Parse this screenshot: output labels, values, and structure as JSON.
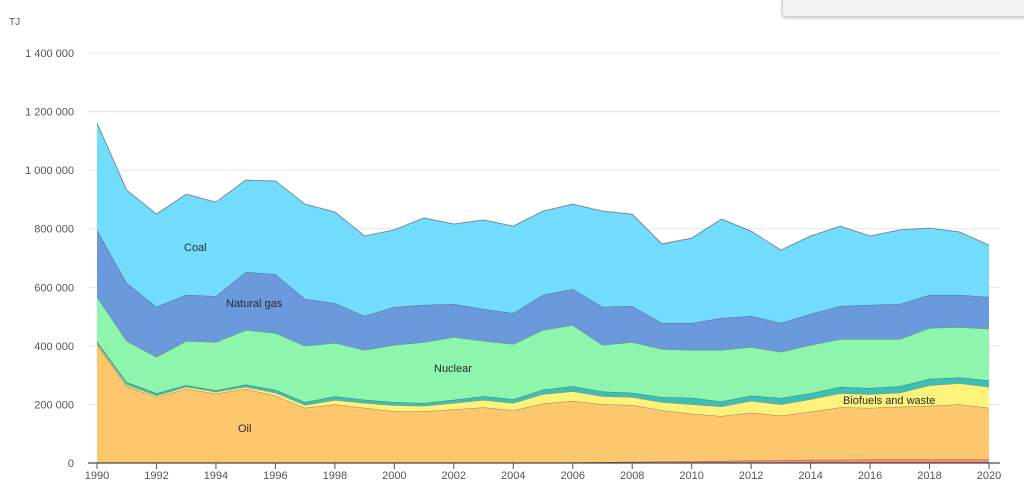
{
  "chart_data": {
    "type": "area",
    "stacked": true,
    "unit_label": "TJ",
    "title": "",
    "xlabel": "",
    "ylabel": "TJ",
    "ylim": [
      0,
      1400000
    ],
    "xlim": [
      1990,
      2020
    ],
    "grid": true,
    "y_ticks": [
      0,
      200000,
      400000,
      600000,
      800000,
      1000000,
      1200000,
      1400000
    ],
    "y_tick_labels": [
      "0",
      "200 000",
      "400 000",
      "600 000",
      "800 000",
      "1 000 000",
      "1 200 000",
      "1 400 000"
    ],
    "x_ticks": [
      1990,
      1992,
      1994,
      1996,
      1998,
      2000,
      2002,
      2004,
      2006,
      2008,
      2010,
      2012,
      2014,
      2016,
      2018,
      2020
    ],
    "x_tick_labels": [
      "1990",
      "1992",
      "1994",
      "1996",
      "1998",
      "2000",
      "2002",
      "2004",
      "2006",
      "2008",
      "2010",
      "2012",
      "2014",
      "2016",
      "2018",
      "2020"
    ],
    "x": [
      1990,
      1991,
      1992,
      1993,
      1994,
      1995,
      1996,
      1997,
      1998,
      1999,
      2000,
      2001,
      2002,
      2003,
      2004,
      2005,
      2006,
      2007,
      2008,
      2009,
      2010,
      2011,
      2012,
      2013,
      2014,
      2015,
      2016,
      2017,
      2018,
      2019,
      2020
    ],
    "series": [
      {
        "name": "",
        "color": "#f08a7a",
        "values": [
          0,
          0,
          0,
          0,
          0,
          0,
          0,
          0,
          0,
          0,
          0,
          0,
          0,
          0,
          0,
          1000,
          2000,
          3000,
          4000,
          5000,
          6000,
          7000,
          9000,
          10000,
          11000,
          11000,
          12000,
          12000,
          12000,
          12000,
          12000
        ]
      },
      {
        "name": "Oil",
        "color": "#fdc76e",
        "values": [
          405000,
          262000,
          225000,
          253000,
          237000,
          253000,
          230000,
          188000,
          200000,
          188000,
          177000,
          177000,
          183000,
          190000,
          180000,
          202000,
          210000,
          197000,
          194000,
          175000,
          162000,
          153000,
          163000,
          152000,
          164000,
          179000,
          176000,
          180000,
          183000,
          188000,
          176000
        ]
      },
      {
        "name": "Biofuels and waste",
        "color": "#fdf27a",
        "values": [
          5000,
          6000,
          5000,
          7000,
          6000,
          7000,
          10000,
          10000,
          15000,
          17000,
          20000,
          18000,
          22000,
          25000,
          25000,
          32000,
          33000,
          28000,
          27000,
          28000,
          32000,
          33000,
          40000,
          38000,
          43000,
          48000,
          47000,
          48000,
          70000,
          72000,
          72000
        ]
      },
      {
        "name": "",
        "color": "#3bbfb6",
        "values": [
          5000,
          8000,
          8000,
          6000,
          5000,
          8000,
          10000,
          10000,
          13000,
          11000,
          11000,
          10000,
          11000,
          13000,
          13000,
          15000,
          17000,
          16000,
          15000,
          17000,
          23000,
          17000,
          18000,
          22000,
          20000,
          22000,
          21000,
          22000,
          23000,
          20000,
          22000
        ]
      },
      {
        "name": "Nuclear",
        "color": "#8ef5ac",
        "values": [
          152000,
          141000,
          124000,
          151000,
          165000,
          186000,
          194000,
          192000,
          182000,
          170000,
          195000,
          208000,
          214000,
          189000,
          188000,
          204000,
          209000,
          159000,
          173000,
          164000,
          163000,
          176000,
          166000,
          157000,
          165000,
          163000,
          167000,
          161000,
          173000,
          172000,
          176000
        ]
      },
      {
        "name": "Natural gas",
        "color": "#6a99dc",
        "values": [
          229000,
          198000,
          171000,
          157000,
          157000,
          198000,
          201000,
          160000,
          136000,
          116000,
          130000,
          127000,
          113000,
          109000,
          106000,
          120000,
          123000,
          130000,
          123000,
          89000,
          92000,
          109000,
          106000,
          99000,
          106000,
          113000,
          117000,
          120000,
          113000,
          110000,
          109000
        ]
      },
      {
        "name": "Coal",
        "color": "#72dcfd",
        "values": [
          365000,
          317000,
          317000,
          344000,
          321000,
          314000,
          318000,
          324000,
          311000,
          273000,
          263000,
          297000,
          273000,
          304000,
          297000,
          286000,
          290000,
          327000,
          314000,
          270000,
          290000,
          338000,
          290000,
          249000,
          266000,
          273000,
          235000,
          253000,
          228000,
          215000,
          177000
        ]
      }
    ],
    "annotations": [
      {
        "text": "Coal",
        "series": "Coal"
      },
      {
        "text": "Natural gas",
        "series": "Natural gas"
      },
      {
        "text": "Nuclear",
        "series": "Nuclear"
      },
      {
        "text": "Oil",
        "series": "Oil"
      },
      {
        "text": "Biofuels and waste",
        "series": "Biofuels and waste"
      }
    ]
  }
}
